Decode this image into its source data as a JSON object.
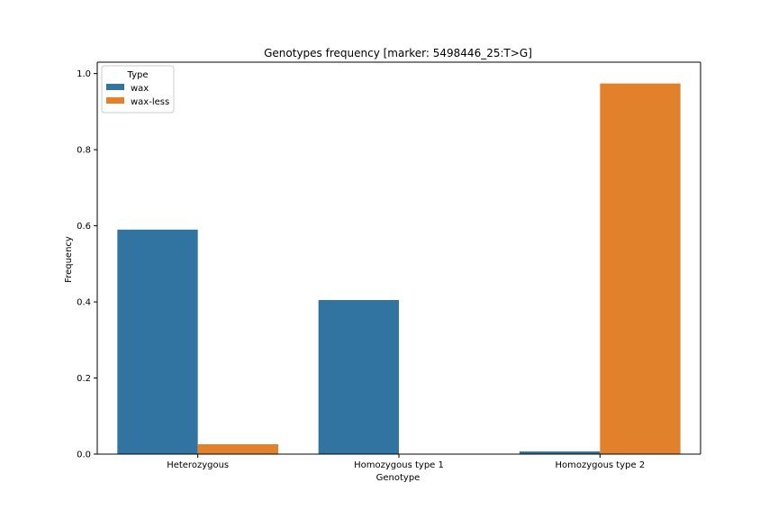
{
  "chart_data": {
    "type": "bar",
    "title": "Genotypes frequency [marker: 5498446_25:T>G]",
    "xlabel": "Genotype",
    "ylabel": "Frequency",
    "categories": [
      "Heterozygous",
      "Homozygous type 1",
      "Homozygous type 2"
    ],
    "series": [
      {
        "name": "wax",
        "color": "#3274a1",
        "values": [
          0.59,
          0.405,
          0.007
        ]
      },
      {
        "name": "wax-less",
        "color": "#e1812c",
        "values": [
          0.026,
          0.0,
          0.974
        ]
      }
    ],
    "ylim": [
      0,
      1.03
    ],
    "yticks": [
      "0.0",
      "0.2",
      "0.4",
      "0.6",
      "0.8",
      "1.0"
    ],
    "grid": false,
    "legend": {
      "title": "Type",
      "position": "top-left"
    }
  }
}
